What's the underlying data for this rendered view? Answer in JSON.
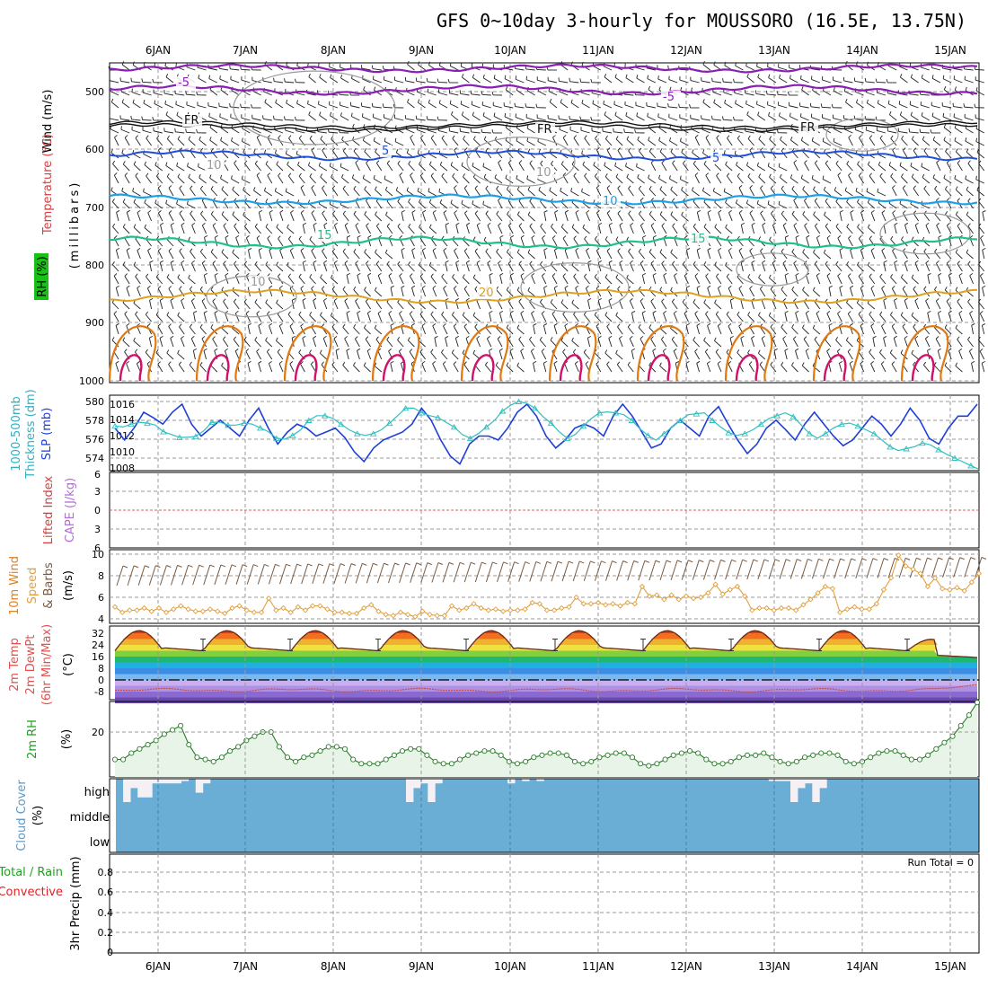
{
  "title": "GFS 0~10day 3-hourly for MOUSSORO (16.5E, 13.75N)",
  "colors": {
    "c_minus5": "#8a1fb3",
    "c_fr": "#111111",
    "c_plus5": "#1f4fd8",
    "c_10": "#1ea0e6",
    "c_15": "#1fc08a",
    "c_20": "#e0a020",
    "c_25": "#e07a10",
    "c_30": "#d0106a",
    "rh_contour": "#9a9a9a",
    "slp": "#1f3fd8",
    "thickness": "#30c0c0",
    "wind_speed": "#e0a040",
    "barb": "#7a5a40",
    "cloud": "#6aaed6",
    "rh2m_fill": "#e8f4e8",
    "rh2m_line": "#2a7a2a",
    "dewpt": "#c05050"
  },
  "days": [
    "6JAN",
    "7JAN",
    "8JAN",
    "9JAN",
    "10JAN",
    "11JAN",
    "12JAN",
    "13JAN",
    "14JAN",
    "15JAN"
  ],
  "panels": {
    "upper_air": {
      "y_label_wind": "Wind (m/s)",
      "y_label_temp": "Temperature (°C)",
      "y_label_rh": "RH (%)",
      "unit_label": "(millibars)",
      "ticks": [
        "500",
        "600",
        "700",
        "800",
        "900",
        "1000"
      ],
      "contour_labels": [
        "-5",
        "-5",
        "FR",
        "FR",
        "FR",
        "5",
        "5",
        "10",
        "10",
        "10",
        "10",
        "15",
        "15",
        "20"
      ]
    },
    "pressure": {
      "y_label_thick": "1000-500mb",
      "y_label_thick2": "Thickness (dm)",
      "y_label_slp": "SLP (mb)",
      "left_ticks": [
        "580",
        "578",
        "576",
        "574"
      ],
      "right_ticks": [
        "1016",
        "1014",
        "1012",
        "1010",
        "1008"
      ]
    },
    "stability": {
      "y_label_li": "Lifted Index",
      "y_label_cape": "CAPE (J/kg)",
      "ticks": [
        "6",
        "3",
        "0",
        "3",
        "6"
      ]
    },
    "wind10m": {
      "y_label_1": "10m Wind",
      "y_label_2": "Speed",
      "y_label_3": "& Barbs",
      "y_label_unit": "(m/s)",
      "ticks": [
        "10",
        "8",
        "6",
        "4"
      ]
    },
    "temp2m": {
      "y_label_1": "2m Temp",
      "y_label_2": "2m DewPt",
      "y_label_3": "(6hr Min/Max)",
      "y_label_unit": "(°C)",
      "ticks": [
        "32",
        "24",
        "16",
        "8",
        "0",
        "-8"
      ]
    },
    "rh2m": {
      "y_label": "2m RH",
      "y_label_unit": "(%)",
      "ticks": [
        "20"
      ]
    },
    "cloud": {
      "y_label": "Cloud Cover",
      "y_label_unit": "(%)",
      "ticks": [
        "high",
        "middle",
        "low"
      ]
    },
    "precip": {
      "y_label_1": "Total / Rain",
      "y_label_2": "Convective",
      "y_label_3": "3hr Precip (mm)",
      "ticks": [
        "0.8",
        "0.6",
        "0.4",
        "0.2",
        "0"
      ],
      "run_total": "Run Total = 0"
    }
  },
  "chart_data": [
    {
      "type": "line",
      "name": "SLP",
      "x_unit": "3-hourly steps from 5JAN",
      "values": [
        1013,
        1011.5,
        1013,
        1015,
        1014.3,
        1013.5,
        1015,
        1016,
        1013.5,
        1012,
        1013,
        1014,
        1013,
        1012,
        1014,
        1015.5,
        1013,
        1011,
        1012.5,
        1013.5,
        1013,
        1012,
        1012.5,
        1013,
        1011.8,
        1010,
        1008.8,
        1010.5,
        1011.5,
        1012,
        1012.5,
        1013.5,
        1015.5,
        1014,
        1011.5,
        1009.5,
        1008.5,
        1011,
        1012,
        1012,
        1011.5,
        1013,
        1015,
        1016,
        1014.5,
        1012,
        1010.5,
        1011.5,
        1013,
        1013.5,
        1013,
        1012,
        1014.5,
        1016,
        1014.5,
        1012.5,
        1010.5,
        1011,
        1013,
        1014,
        1013,
        1012,
        1014.5,
        1015.7,
        1013.5,
        1011.5,
        1009.8,
        1011,
        1013,
        1014,
        1012.8,
        1011.5,
        1013.5,
        1015,
        1013.5,
        1012,
        1010.8,
        1011.5,
        1013,
        1014.5,
        1013.5,
        1012,
        1013.5,
        1015.5,
        1014,
        1011.7,
        1011,
        1013,
        1014.5,
        1014.5,
        1016
      ]
    },
    {
      "type": "line",
      "name": "Thickness",
      "x_unit": "3-hourly steps from 5JAN",
      "values": [
        577.4,
        577.3,
        577.6,
        577.8,
        577.7,
        577.5,
        576.8,
        576.5,
        576.2,
        576.2,
        576.3,
        576.9,
        577.8,
        577.8,
        577.5,
        577.5,
        577.7,
        577.6,
        577.2,
        576.8,
        576.1,
        576.0,
        576.4,
        577.0,
        578.0,
        578.5,
        578.5,
        578.2,
        577.6,
        577.0,
        576.6,
        576.4,
        576.6,
        577.0,
        577.7,
        578.5,
        579.3,
        579.3,
        578.8,
        578.5,
        578.3,
        577.8,
        577.3,
        576.5,
        576.1,
        576.6,
        577.3,
        578.0,
        579.0,
        579.6,
        580.0,
        579.8,
        579.3,
        578.4,
        577.7,
        576.8,
        576.1,
        576.5,
        577.4,
        578.2,
        578.8,
        578.9,
        578.8,
        578.6,
        578.0,
        577.1,
        576.4,
        575.9,
        576.6,
        577.3,
        578.0,
        578.6,
        578.7,
        578.8,
        578.0,
        577.3,
        576.7,
        576.4,
        576.6,
        577.0,
        577.6,
        578.2,
        578.5,
        578.8,
        578.4,
        577.5,
        576.6,
        576.1,
        576.6,
        577.2,
        577.6,
        577.7,
        577.4,
        577.0,
        576.6,
        575.9,
        575.2,
        574.8,
        575.0,
        575.2,
        575.6,
        575.4,
        574.9,
        574.4,
        574.0,
        573.6,
        573.2,
        572.8
      ]
    },
    {
      "type": "line",
      "name": "10m Wind Speed",
      "values": [
        5.1,
        4.6,
        4.8,
        4.8,
        5.0,
        4.7,
        5.0,
        4.6,
        4.9,
        5.2,
        4.9,
        4.7,
        4.7,
        4.9,
        4.7,
        4.5,
        5.0,
        5.2,
        4.8,
        4.6,
        4.6,
        5.9,
        4.8,
        5.0,
        4.6,
        5.1,
        4.8,
        5.2,
        5.2,
        4.9,
        4.6,
        4.6,
        4.5,
        4.5,
        5.0,
        5.3,
        4.7,
        4.4,
        4.3,
        4.6,
        4.4,
        4.2,
        4.7,
        4.4,
        4.3,
        4.3,
        5.2,
        4.8,
        5.0,
        5.4,
        5.0,
        4.8,
        4.9,
        4.7,
        4.8,
        4.8,
        4.9,
        5.5,
        5.4,
        4.8,
        4.8,
        5.0,
        5.1,
        6.0,
        5.4,
        5.4,
        5.5,
        5.3,
        5.4,
        5.2,
        5.5,
        5.4,
        7.0,
        6.1,
        6.2,
        5.8,
        6.2,
        5.8,
        6.1,
        5.9,
        6.0,
        6.4,
        7.2,
        6.3,
        6.7,
        7.0,
        6.1,
        4.8,
        5.0,
        5.0,
        4.8,
        5.0,
        5.0,
        4.8,
        5.3,
        5.8,
        6.4,
        7.0,
        6.8,
        4.6,
        4.9,
        5.1,
        4.9,
        4.9,
        5.4,
        6.7,
        7.8,
        9.9,
        8.9,
        8.6,
        8.2,
        7.0,
        7.8,
        6.8,
        6.7,
        6.9,
        6.6,
        7.4,
        8.2
      ]
    },
    {
      "type": "line",
      "name": "2m RH",
      "values": [
        7,
        7,
        10,
        12,
        14,
        16,
        19,
        21,
        23,
        14,
        8,
        7,
        6,
        8,
        11,
        13,
        16,
        18,
        20,
        20,
        13,
        8,
        6,
        8,
        9,
        11,
        13,
        13,
        12,
        7,
        5,
        5,
        5,
        7,
        9,
        11,
        12,
        12,
        9,
        6,
        5,
        5,
        7,
        9,
        10,
        11,
        11,
        9,
        6,
        5,
        6,
        8,
        9,
        10,
        10,
        9,
        6,
        5,
        6,
        8,
        9,
        10,
        10,
        8,
        5,
        4,
        5,
        7,
        9,
        10,
        11,
        10,
        7,
        5,
        5,
        6,
        8,
        9,
        9,
        10,
        8,
        6,
        5,
        6,
        8,
        9,
        10,
        10,
        9,
        6,
        5,
        6,
        8,
        10,
        11,
        11,
        9,
        7,
        7,
        9,
        12,
        15,
        18,
        23,
        28,
        34
      ]
    },
    {
      "type": "bar",
      "name": "High Cloud Cover (%)",
      "values": [
        0,
        100,
        40,
        80,
        80,
        20,
        20,
        20,
        20,
        10,
        0,
        60,
        20,
        0,
        0,
        0,
        0,
        0,
        0,
        0,
        0,
        0,
        0,
        0,
        0,
        0,
        0,
        0,
        0,
        0,
        0,
        0,
        0,
        0,
        0,
        0,
        0,
        0,
        0,
        0,
        100,
        40,
        20,
        100,
        20,
        0,
        0,
        0,
        0,
        0,
        0,
        0,
        0,
        0,
        20,
        0,
        10,
        0,
        10,
        0,
        0,
        0,
        0,
        0,
        0,
        0,
        0,
        0,
        0,
        0,
        0,
        0,
        0,
        0,
        0,
        0,
        0,
        0,
        0,
        0,
        0,
        0,
        0,
        0,
        0,
        0,
        0,
        0,
        0,
        0,
        10,
        10,
        10,
        100,
        40,
        20,
        100,
        40,
        0,
        0,
        0,
        0,
        0,
        0,
        0,
        0,
        0,
        0,
        0,
        0,
        0,
        0,
        0,
        0,
        0,
        0,
        0,
        0,
        0
      ]
    }
  ]
}
